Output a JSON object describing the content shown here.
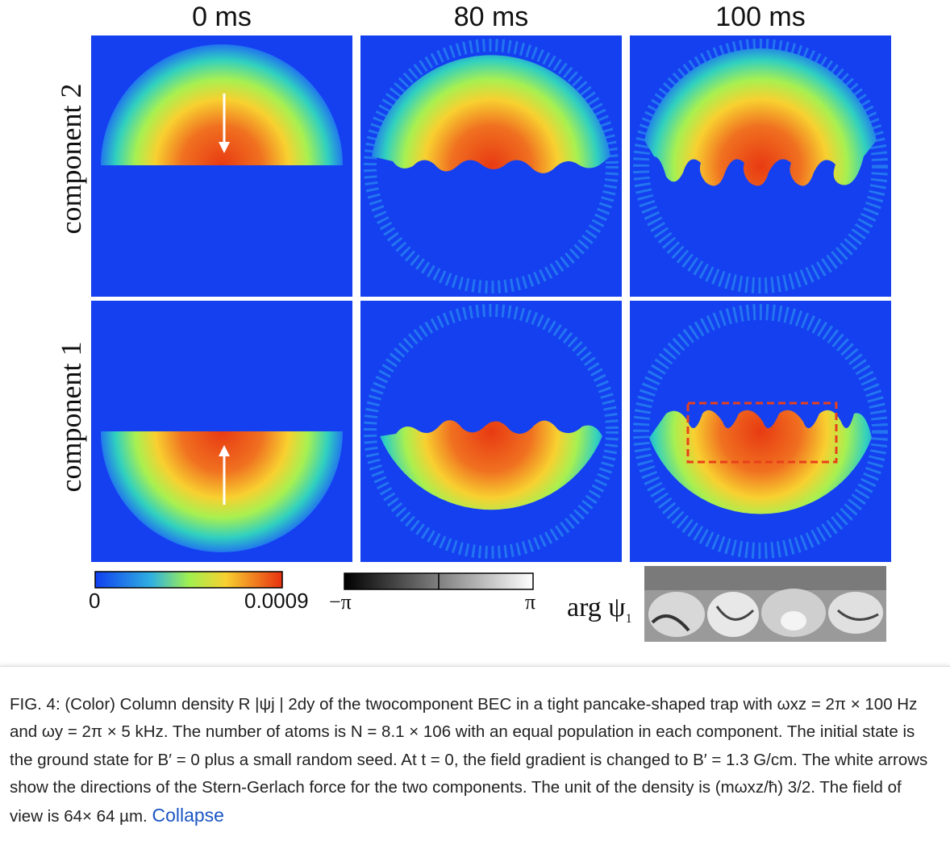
{
  "figure": {
    "column_titles": [
      "0 ms",
      "80 ms",
      "100 ms"
    ],
    "row_labels": [
      "component 2",
      "component 1"
    ],
    "density_colorbar": {
      "min_label": "0",
      "max_label": "0.0009",
      "colors": [
        "#1040f0",
        "#30c0e0",
        "#a0f050",
        "#f8d030",
        "#e83010"
      ]
    },
    "phase_colorbar": {
      "min_label": "−π",
      "max_label": "π"
    },
    "phase_inset_label": "arg ψ",
    "phase_inset_subscript": "1",
    "colors": {
      "background": "#1440f0",
      "highlight_box": "#e8401a",
      "arrow": "#ffffff"
    }
  },
  "caption": {
    "text": "FIG. 4: (Color) Column density R |ψj | 2dy of the twocomponent BEC in a tight pancake-shaped trap with ωxz = 2π × 100 Hz and ωy = 2π × 5 kHz. The number of atoms is N = 8.1 × 106 with an equal population in each component. The initial state is the ground state for B′ = 0 plus a small random seed. At t = 0, the field gradient is changed to B′ = 1.3 G/cm. The white arrows show the directions of the Stern-Gerlach force for the two components. The unit of the density is (mωxz/ħ) 3/2. The field of view is 64× 64 µm.",
    "collapse_label": "Collapse"
  }
}
